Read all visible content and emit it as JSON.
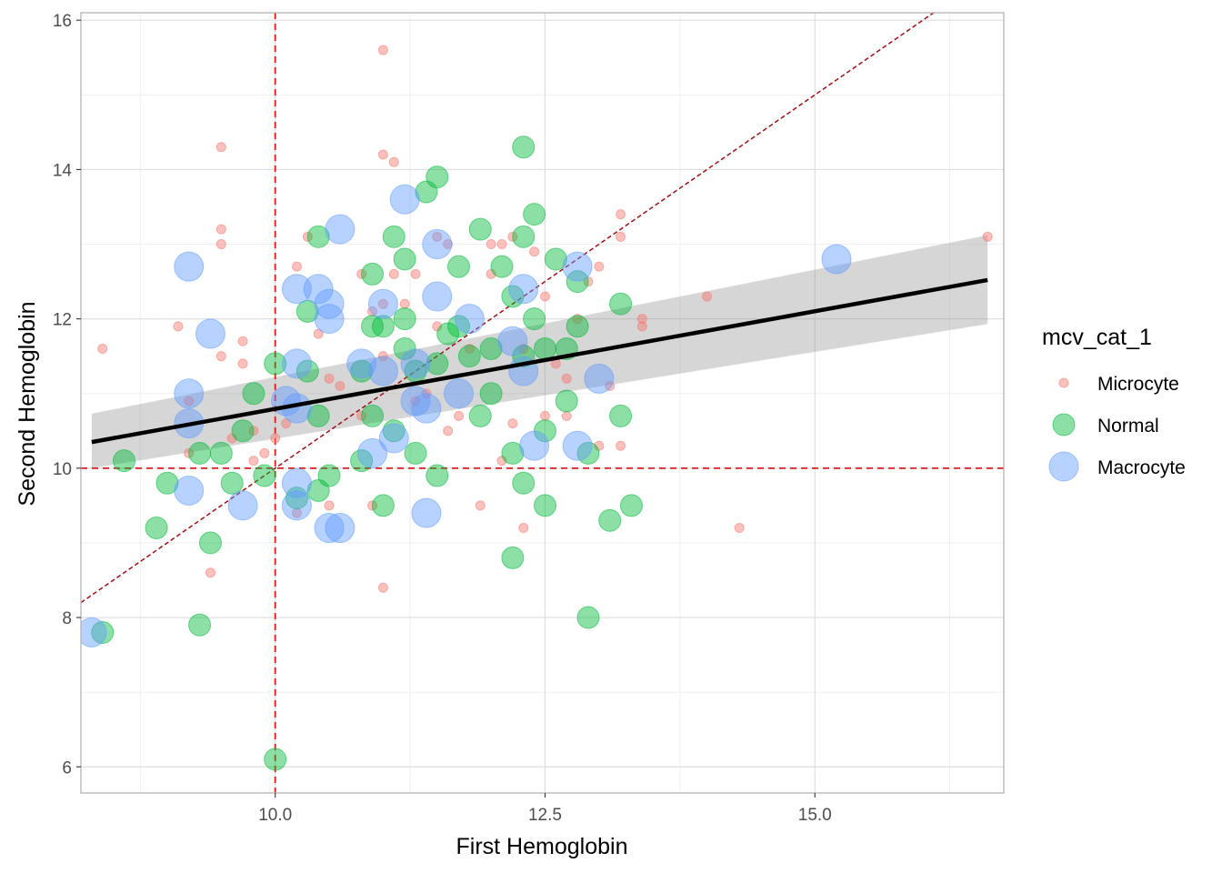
{
  "chart_data": {
    "type": "scatter",
    "xlabel": "First Hemoglobin",
    "ylabel": "Second Hemoglobin",
    "xlim": [
      8.2,
      16.75
    ],
    "ylim": [
      5.65,
      16.1
    ],
    "x_ticks": [
      10.0,
      12.5,
      15.0
    ],
    "x_tick_labels": [
      "10.0",
      "12.5",
      "15.0"
    ],
    "x_minor_ticks": [
      8.75,
      11.25,
      13.75,
      16.25
    ],
    "y_ticks": [
      6,
      8,
      10,
      12,
      14,
      16
    ],
    "y_tick_labels": [
      "6",
      "8",
      "10",
      "12",
      "14",
      "16"
    ],
    "y_minor_ticks": [
      7,
      9,
      11,
      13,
      15
    ],
    "grid": true,
    "legend": {
      "title": "mcv_cat_1",
      "position": "right",
      "entries": [
        "Microcyte",
        "Normal",
        "Macrocyte"
      ]
    },
    "reference_lines": {
      "vertical_x": 10,
      "horizontal_y": 10,
      "identity": "y = x",
      "color": "#e31a1c",
      "identity_color": "#a50f15"
    },
    "regression": {
      "method": "linear",
      "x_range": [
        8.3,
        16.6
      ],
      "fit": [
        10.35,
        12.52
      ],
      "band_lower": [
        10.0,
        11.93
      ],
      "band_upper": [
        10.73,
        13.12
      ]
    },
    "series": [
      {
        "name": "Microcyte",
        "color": "#F8766D",
        "size": 5,
        "points": [
          [
            8.4,
            11.6
          ],
          [
            9.1,
            11.9
          ],
          [
            9.2,
            10.9
          ],
          [
            9.2,
            10.2
          ],
          [
            9.4,
            8.6
          ],
          [
            9.5,
            14.3
          ],
          [
            9.5,
            13.2
          ],
          [
            9.5,
            13.0
          ],
          [
            9.5,
            11.5
          ],
          [
            9.6,
            10.4
          ],
          [
            9.7,
            11.7
          ],
          [
            9.7,
            11.4
          ],
          [
            9.8,
            10.1
          ],
          [
            9.8,
            10.5
          ],
          [
            9.9,
            10.2
          ],
          [
            10.0,
            10.4
          ],
          [
            10.1,
            10.6
          ],
          [
            10.2,
            12.7
          ],
          [
            10.3,
            13.1
          ],
          [
            10.2,
            9.4
          ],
          [
            10.4,
            11.8
          ],
          [
            10.5,
            11.2
          ],
          [
            10.5,
            9.5
          ],
          [
            10.6,
            11.1
          ],
          [
            10.8,
            12.6
          ],
          [
            10.8,
            10.7
          ],
          [
            10.9,
            12.1
          ],
          [
            10.9,
            9.5
          ],
          [
            11.0,
            15.6
          ],
          [
            11.0,
            14.2
          ],
          [
            11.0,
            12.2
          ],
          [
            11.0,
            11.5
          ],
          [
            11.0,
            8.4
          ],
          [
            11.1,
            14.1
          ],
          [
            11.1,
            12.6
          ],
          [
            11.2,
            12.2
          ],
          [
            11.3,
            12.6
          ],
          [
            11.3,
            10.9
          ],
          [
            11.4,
            11.0
          ],
          [
            11.5,
            13.1
          ],
          [
            11.5,
            11.9
          ],
          [
            11.6,
            13.0
          ],
          [
            11.6,
            10.5
          ],
          [
            11.7,
            10.7
          ],
          [
            11.8,
            11.6
          ],
          [
            11.9,
            9.5
          ],
          [
            12.0,
            13.0
          ],
          [
            12.0,
            12.6
          ],
          [
            12.1,
            13.0
          ],
          [
            12.1,
            10.1
          ],
          [
            12.2,
            13.1
          ],
          [
            12.2,
            10.6
          ],
          [
            12.3,
            11.6
          ],
          [
            12.3,
            9.2
          ],
          [
            12.4,
            12.9
          ],
          [
            12.5,
            12.3
          ],
          [
            12.5,
            10.7
          ],
          [
            12.6,
            11.4
          ],
          [
            12.7,
            11.2
          ],
          [
            12.7,
            10.7
          ],
          [
            12.8,
            12.0
          ],
          [
            12.9,
            12.5
          ],
          [
            13.0,
            12.7
          ],
          [
            13.0,
            10.3
          ],
          [
            13.1,
            11.1
          ],
          [
            13.2,
            13.4
          ],
          [
            13.2,
            13.1
          ],
          [
            13.2,
            10.3
          ],
          [
            13.4,
            12.0
          ],
          [
            13.4,
            11.9
          ],
          [
            14.0,
            12.3
          ],
          [
            14.3,
            9.2
          ],
          [
            16.6,
            13.1
          ]
        ]
      },
      {
        "name": "Normal",
        "color": "#00BA38",
        "size": 12,
        "points": [
          [
            8.4,
            7.8
          ],
          [
            8.6,
            10.1
          ],
          [
            8.9,
            9.2
          ],
          [
            9.0,
            9.8
          ],
          [
            9.3,
            7.9
          ],
          [
            9.3,
            10.2
          ],
          [
            9.4,
            9.0
          ],
          [
            9.5,
            10.2
          ],
          [
            9.6,
            9.8
          ],
          [
            9.7,
            10.5
          ],
          [
            9.8,
            11.0
          ],
          [
            9.9,
            9.9
          ],
          [
            10.0,
            11.4
          ],
          [
            10.0,
            6.1
          ],
          [
            10.2,
            9.6
          ],
          [
            10.3,
            12.1
          ],
          [
            10.3,
            11.3
          ],
          [
            10.4,
            13.1
          ],
          [
            10.4,
            10.7
          ],
          [
            10.4,
            9.7
          ],
          [
            10.5,
            9.9
          ],
          [
            10.8,
            11.3
          ],
          [
            10.8,
            10.1
          ],
          [
            10.9,
            12.6
          ],
          [
            10.9,
            11.9
          ],
          [
            10.9,
            10.7
          ],
          [
            11.0,
            11.9
          ],
          [
            11.0,
            9.5
          ],
          [
            11.1,
            13.1
          ],
          [
            11.1,
            10.5
          ],
          [
            11.2,
            12.8
          ],
          [
            11.2,
            12.0
          ],
          [
            11.2,
            11.6
          ],
          [
            11.3,
            11.3
          ],
          [
            11.3,
            10.2
          ],
          [
            11.4,
            13.7
          ],
          [
            11.5,
            13.9
          ],
          [
            11.5,
            11.4
          ],
          [
            11.5,
            9.9
          ],
          [
            11.6,
            11.8
          ],
          [
            11.7,
            12.7
          ],
          [
            11.7,
            11.9
          ],
          [
            11.8,
            11.5
          ],
          [
            11.9,
            13.2
          ],
          [
            11.9,
            10.7
          ],
          [
            12.0,
            11.6
          ],
          [
            12.0,
            11.0
          ],
          [
            12.1,
            12.7
          ],
          [
            12.2,
            12.3
          ],
          [
            12.2,
            10.2
          ],
          [
            12.2,
            8.8
          ],
          [
            12.3,
            14.3
          ],
          [
            12.3,
            13.1
          ],
          [
            12.3,
            11.5
          ],
          [
            12.3,
            9.8
          ],
          [
            12.4,
            13.4
          ],
          [
            12.4,
            12.0
          ],
          [
            12.5,
            11.6
          ],
          [
            12.5,
            10.5
          ],
          [
            12.5,
            9.5
          ],
          [
            12.6,
            12.8
          ],
          [
            12.7,
            11.6
          ],
          [
            12.7,
            10.9
          ],
          [
            12.8,
            12.5
          ],
          [
            12.8,
            11.9
          ],
          [
            12.9,
            10.2
          ],
          [
            12.9,
            8.0
          ],
          [
            13.1,
            9.3
          ],
          [
            13.2,
            12.2
          ],
          [
            13.2,
            10.7
          ],
          [
            13.3,
            9.5
          ]
        ]
      },
      {
        "name": "Macrocyte",
        "color": "#619CFF",
        "size": 16,
        "points": [
          [
            8.3,
            7.8
          ],
          [
            9.2,
            12.7
          ],
          [
            9.2,
            11.0
          ],
          [
            9.2,
            10.6
          ],
          [
            9.2,
            9.7
          ],
          [
            9.4,
            11.8
          ],
          [
            9.7,
            9.5
          ],
          [
            10.1,
            10.9
          ],
          [
            10.2,
            12.4
          ],
          [
            10.2,
            11.4
          ],
          [
            10.2,
            10.8
          ],
          [
            10.2,
            9.8
          ],
          [
            10.2,
            9.5
          ],
          [
            10.4,
            12.4
          ],
          [
            10.5,
            12.2
          ],
          [
            10.5,
            12.0
          ],
          [
            10.5,
            9.2
          ],
          [
            10.6,
            13.2
          ],
          [
            10.6,
            9.2
          ],
          [
            10.8,
            11.4
          ],
          [
            10.9,
            10.2
          ],
          [
            11.0,
            12.2
          ],
          [
            11.0,
            11.3
          ],
          [
            11.1,
            10.4
          ],
          [
            11.2,
            13.6
          ],
          [
            11.3,
            11.4
          ],
          [
            11.3,
            10.9
          ],
          [
            11.4,
            10.8
          ],
          [
            11.4,
            9.4
          ],
          [
            11.5,
            13.0
          ],
          [
            11.5,
            12.3
          ],
          [
            11.7,
            11.0
          ],
          [
            11.8,
            12.0
          ],
          [
            12.2,
            11.7
          ],
          [
            12.3,
            12.4
          ],
          [
            12.3,
            11.3
          ],
          [
            12.4,
            10.3
          ],
          [
            12.8,
            12.7
          ],
          [
            12.8,
            10.3
          ],
          [
            13.0,
            11.2
          ],
          [
            15.2,
            12.8
          ]
        ]
      }
    ]
  }
}
